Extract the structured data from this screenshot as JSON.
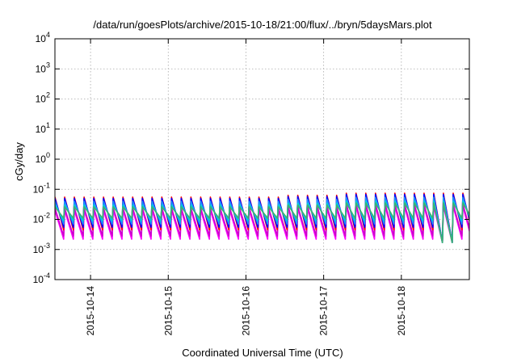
{
  "chart_data": {
    "type": "line",
    "title": "/data/run/goesPlots/archive/2015-10-18/21:00/flux/../bryn/5daysMars.plot",
    "xlabel": "Coordinated Universal Time (UTC)",
    "ylabel": "cGy/day",
    "yscale": "log",
    "ylim": [
      0.0001,
      10000
    ],
    "xlim": [
      "2015-10-13 13:00",
      "2015-10-18 21:00"
    ],
    "y_ticks": [
      {
        "base": "10",
        "exp": "-4",
        "value": 0.0001
      },
      {
        "base": "10",
        "exp": "-3",
        "value": 0.001
      },
      {
        "base": "10",
        "exp": "-2",
        "value": 0.01
      },
      {
        "base": "10",
        "exp": "-1",
        "value": 0.1
      },
      {
        "base": "10",
        "exp": "0",
        "value": 1
      },
      {
        "base": "10",
        "exp": "1",
        "value": 10
      },
      {
        "base": "10",
        "exp": "2",
        "value": 100
      },
      {
        "base": "10",
        "exp": "3",
        "value": 1000
      },
      {
        "base": "10",
        "exp": "4",
        "value": 10000
      }
    ],
    "x_ticks": [
      "2015-10-14",
      "2015-10-15",
      "2015-10-16",
      "2015-10-17",
      "2015-10-18"
    ],
    "grid": true,
    "cycles_per_day": 8,
    "series": [
      {
        "color": "#ff00ff",
        "peak": 0.02,
        "trough": 0.0022
      },
      {
        "color": "#cc00cc",
        "peak": 0.024,
        "trough": 0.0028
      },
      {
        "color": "#ff0000",
        "peak": 0.055,
        "trough": 0.0045
      },
      {
        "color": "#0000ff",
        "peak": 0.05,
        "trough": 0.0055
      },
      {
        "color": "#1e90ff",
        "peak": 0.04,
        "trough": 0.007
      },
      {
        "color": "#00ced1",
        "peak": 0.03,
        "trough": 0.009
      },
      {
        "color": "#3cb371",
        "peak": 0.026,
        "trough": 0.011
      }
    ],
    "peak_scale_by_day": [
      {
        "from": "2015-10-13 13:00",
        "to": "2015-10-16 12:00",
        "scale": 1.0
      },
      {
        "from": "2015-10-16 12:00",
        "to": "2015-10-17 06:00",
        "scale": 1.15
      },
      {
        "from": "2015-10-17 06:00",
        "to": "2015-10-18 21:00",
        "scale": 1.35
      }
    ],
    "anomaly": {
      "x": "2015-10-18 14:00",
      "value": 0.0017
    }
  }
}
